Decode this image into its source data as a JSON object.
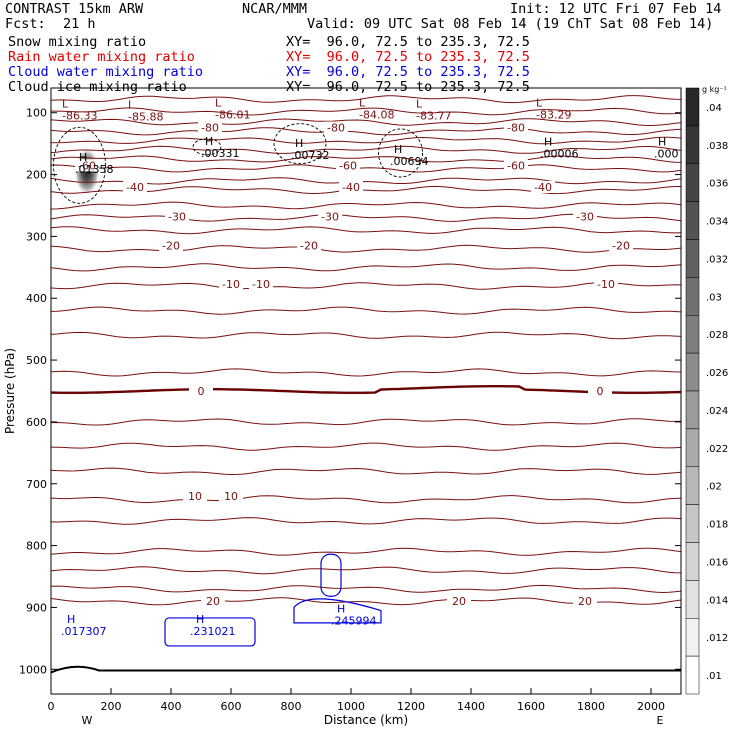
{
  "header": {
    "title": "CONTRAST 15km ARW",
    "center": "NCAR/MMM",
    "init": "Init: 12 UTC Fri 07 Feb 14",
    "fcst_label": "Fcst:",
    "fcst_value": "21 h",
    "valid": "Valid: 09 UTC Sat 08 Feb 14 (19 ChT Sat 08 Feb 14)",
    "fields": [
      {
        "name": "Snow mixing ratio",
        "xy": "XY=  96.0, 72.5 to 235.3, 72.5",
        "color": "#000000"
      },
      {
        "name": "Rain water mixing ratio",
        "xy": "XY=  96.0, 72.5 to 235.3, 72.5",
        "color": "#e00000"
      },
      {
        "name": "Cloud water mixing ratio",
        "xy": "XY=  96.0, 72.5 to 235.3, 72.5",
        "color": "#0000dd"
      },
      {
        "name": "Cloud ice mixing ratio",
        "xy": "XY=  96.0, 72.5 to 235.3, 72.5",
        "color": "#000000"
      }
    ]
  },
  "chart_data": {
    "type": "contour",
    "xlabel": "Distance (km)",
    "ylabel": "Pressure (hPa)",
    "xlim": [
      0,
      2100
    ],
    "ylim": [
      1040,
      60
    ],
    "x_ticks": [
      0,
      200,
      400,
      600,
      800,
      1000,
      1200,
      1400,
      1600,
      1800,
      2000
    ],
    "y_ticks": [
      100,
      200,
      300,
      400,
      500,
      600,
      700,
      800,
      900,
      1000
    ],
    "x_end_labels": {
      "left": "W",
      "right": "E"
    },
    "colorbar": {
      "unit": "g kg⁻¹",
      "ticks": [
        ".04",
        ".038",
        ".036",
        ".034",
        ".032",
        ".03",
        ".028",
        ".026",
        ".024",
        ".022",
        ".02",
        ".018",
        ".016",
        ".014",
        ".012",
        ".01"
      ]
    },
    "temperature_contours": [
      {
        "value": -80,
        "label": "-80",
        "color": "#7a1010",
        "label_x": [
          530,
          950,
          1550
        ]
      },
      {
        "value": -60,
        "label": "-60",
        "color": "#7a1010",
        "label_x": [
          120,
          990,
          1550
        ]
      },
      {
        "value": -40,
        "label": "-40",
        "color": "#7a1010",
        "label_x": [
          280,
          1000,
          1640
        ]
      },
      {
        "value": -30,
        "label": "-30",
        "color": "#7a1010",
        "label_x": [
          420,
          930,
          1780
        ]
      },
      {
        "value": -20,
        "label": "-20",
        "color": "#7a1010",
        "label_x": [
          400,
          860,
          1900
        ]
      },
      {
        "value": -10,
        "label": "-10",
        "color": "#7a1010",
        "label_x": [
          600,
          700,
          1850
        ]
      },
      {
        "value": 0,
        "label": "0",
        "color": "#7a1010",
        "label_x": [
          500,
          1830
        ]
      },
      {
        "value": 10,
        "label": "10",
        "color": "#7a1010",
        "label_x": [
          480,
          600
        ]
      },
      {
        "value": 20,
        "label": "20",
        "color": "#7a1010",
        "label_x": [
          540,
          1360,
          1780
        ]
      }
    ],
    "thin_isotherm_levels": [
      78,
      98,
      115,
      130,
      145,
      160,
      175,
      190,
      210,
      225,
      250,
      270,
      290,
      320,
      350,
      380,
      420,
      460,
      520,
      600,
      640,
      680,
      725,
      760,
      810,
      840,
      870,
      890
    ],
    "bold_isotherm_level": 550,
    "temperature_extrema": [
      {
        "type": "L",
        "value": "-86.33",
        "x": 110,
        "p": 98
      },
      {
        "type": "L",
        "value": "-85.88",
        "x": 330,
        "p": 100
      },
      {
        "type": "L",
        "value": "-86.01",
        "x": 620,
        "p": 96
      },
      {
        "type": "L",
        "value": "-84.08",
        "x": 1100,
        "p": 96
      },
      {
        "type": "L",
        "value": "-83.77",
        "x": 1290,
        "p": 98
      },
      {
        "type": "L",
        "value": "-83.29",
        "x": 1690,
        "p": 96
      }
    ],
    "cloud_ice_maxima": [
      {
        "value": ".01358",
        "x": 100,
        "p": 188
      },
      {
        "value": ".00331",
        "x": 520,
        "p": 162
      },
      {
        "value": ".00732",
        "x": 820,
        "p": 165
      },
      {
        "value": ".00694",
        "x": 1150,
        "p": 175
      },
      {
        "value": ".00006",
        "x": 1650,
        "p": 163
      },
      {
        "value": ".000",
        "x": 2030,
        "p": 163
      }
    ],
    "cloud_water_maxima": [
      {
        "value": ".017307",
        "x": 60,
        "p": 935
      },
      {
        "value": ".231021",
        "x": 490,
        "p": 935
      },
      {
        "value": ".245994",
        "x": 960,
        "p": 918
      }
    ],
    "snow_max": {
      "x": 120,
      "p": 195,
      "value": 0.04
    }
  }
}
